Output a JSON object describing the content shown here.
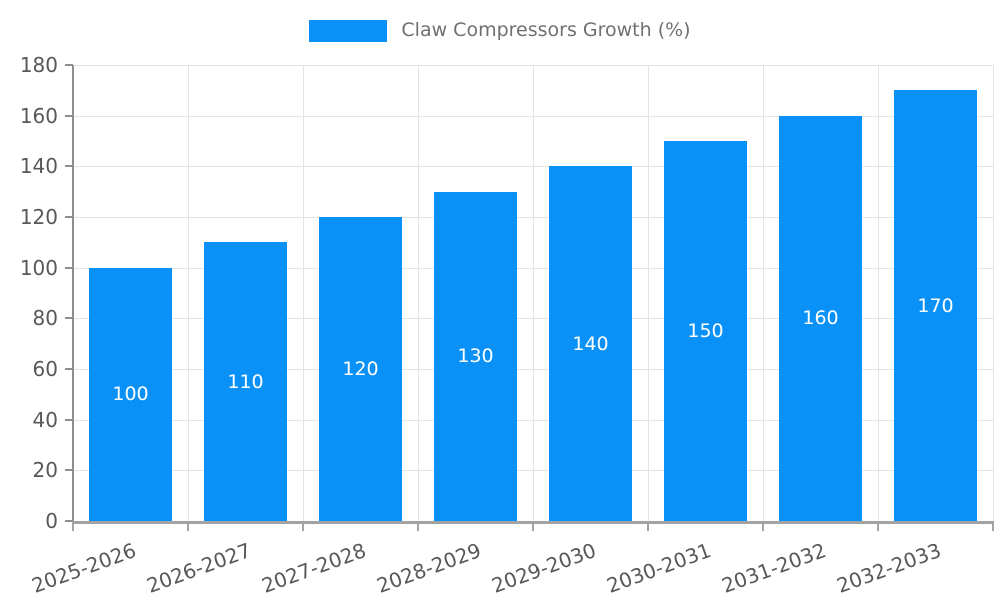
{
  "chart_data": {
    "type": "bar",
    "title": "Claw Compressors Growth (%)",
    "legend": {
      "label": "Claw Compressors Growth (%)",
      "position": "top-center"
    },
    "categories": [
      "2025-2026",
      "2026-2027",
      "2027-2028",
      "2028-2029",
      "2029-2030",
      "2030-2031",
      "2031-2032",
      "2032-2033"
    ],
    "values": [
      100,
      110,
      120,
      130,
      140,
      150,
      160,
      170
    ],
    "bar_labels": [
      "100",
      "110",
      "120",
      "130",
      "140",
      "150",
      "160",
      "170"
    ],
    "bar_label_position": "center-inside",
    "xlabel": "",
    "ylabel": "",
    "ylim": [
      0,
      180
    ],
    "yticks": [
      0,
      20,
      40,
      60,
      80,
      100,
      120,
      140,
      160,
      180
    ],
    "grid": true,
    "xtick_rotation_deg": -20,
    "colors": {
      "bar": "#0991f7",
      "bar_label": "#ffffff",
      "grid": "#e4e4e4",
      "axis_left": "#8f8f8f",
      "axis_bottom": "#a3a3a3",
      "tick_label": "#585858",
      "legend_text": "#707070",
      "background": "#ffffff"
    }
  }
}
